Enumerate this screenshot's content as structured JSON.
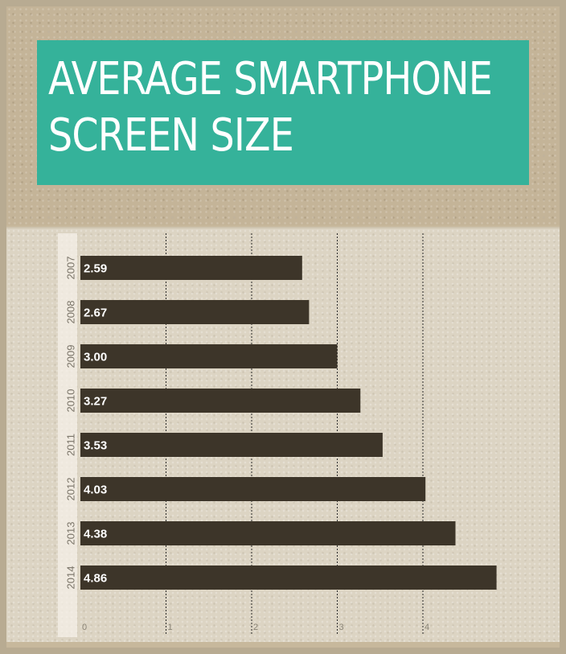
{
  "title": {
    "line1": "AVERAGE SMARTPHONE",
    "line2": "SCREEN SIZE"
  },
  "colors": {
    "title_bg": "#35b29a",
    "bar": "#3d3529",
    "gridline": "#2b2b2b"
  },
  "chart_data": {
    "type": "bar",
    "orientation": "horizontal",
    "title": "AVERAGE SMARTPHONE SCREEN SIZE",
    "categories": [
      "2007",
      "2008",
      "2009",
      "2010",
      "2011",
      "2012",
      "2013",
      "2014"
    ],
    "values": [
      2.59,
      2.67,
      3.0,
      3.27,
      3.53,
      4.03,
      4.38,
      4.86
    ],
    "value_labels": [
      "2.59",
      "2.67",
      "3.00",
      "3.27",
      "3.53",
      "4.03",
      "4.38",
      "4.86"
    ],
    "xticks": [
      0,
      1,
      2,
      3,
      4
    ],
    "xlim": [
      0,
      4.9
    ],
    "grid": true,
    "legend": "none"
  }
}
